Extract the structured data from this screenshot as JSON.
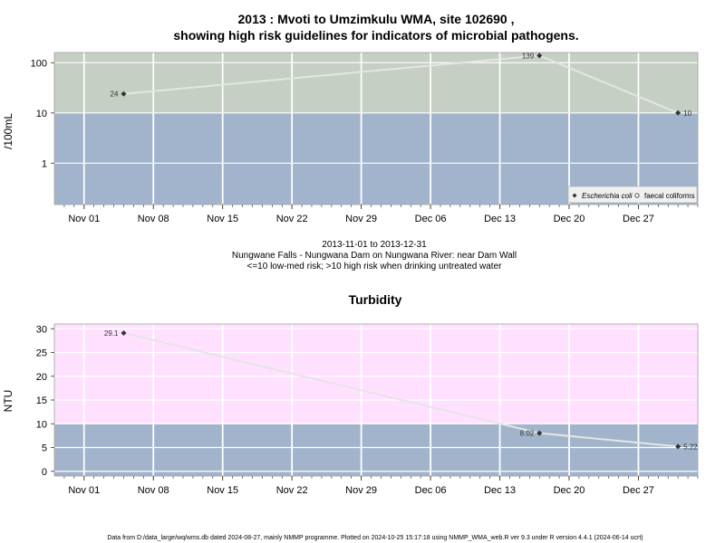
{
  "colors": {
    "high_risk_ecoli": "#c5cfc3",
    "low_risk": "#a2b4cc",
    "high_risk_turbidity": "#ffe1ff",
    "line": "#e5e5e5",
    "point": "#333333",
    "grid": "#ffffff"
  },
  "header": {
    "title_line1": "2013 : Mvoti to Umzimkulu WMA, site 102690 ,",
    "title_line2": "showing high risk guidelines for indicators of microbial pathogens."
  },
  "subtitle": {
    "date_range": "2013-11-01 to 2013-12-31",
    "site_name": "Nungwane Falls - Nungwana Dam on Nungwana River: near Dam Wall",
    "risk_note": "<=10 low-med risk; >10 high risk when drinking untreated water"
  },
  "footer": "Data from D:/data_large/wq/wms.db dated 2024-08-27, mainly NMMP programme. Plotted on 2024-10-25 15:17:18 using NMMP_WMA_web.R ver 9.3 under R version 4.4.1 (2024-06-14 ucrt)",
  "x_ticks": [
    "Nov 01",
    "Nov 08",
    "Nov 15",
    "Nov 22",
    "Nov 29",
    "Dec 06",
    "Dec 13",
    "Dec 20",
    "Dec 27"
  ],
  "chart_data": [
    {
      "type": "line",
      "title": "",
      "ylabel": "/100mL",
      "yscale": "log",
      "ylim": [
        0.15,
        160
      ],
      "xlim": [
        "2013-10-29",
        "2014-01-02"
      ],
      "y_ticks": [
        1,
        10,
        100
      ],
      "y_tick_labels": [
        "1",
        "10",
        "100"
      ],
      "threshold": 10,
      "grid": true,
      "legend_position": "bottom-right",
      "legend": [
        "Escherichia coli",
        "faecal coliforms"
      ],
      "series": [
        {
          "name": "Escherichia coli",
          "points": [
            {
              "date": "2013-11-05",
              "value": 24,
              "label": "24",
              "label_side": "left"
            },
            {
              "date": "2013-12-17",
              "value": 139,
              "label": "139",
              "label_side": "left"
            },
            {
              "date": "2013-12-31",
              "value": 10,
              "label": "10",
              "label_side": "right"
            }
          ]
        }
      ]
    },
    {
      "type": "line",
      "title": "Turbidity",
      "ylabel": "NTU",
      "yscale": "linear",
      "ylim": [
        -1,
        31
      ],
      "xlim": [
        "2013-10-29",
        "2014-01-02"
      ],
      "y_ticks": [
        0,
        5,
        10,
        15,
        20,
        25,
        30
      ],
      "y_tick_labels": [
        "0",
        "5",
        "10",
        "15",
        "20",
        "25",
        "30"
      ],
      "threshold": 10,
      "grid": true,
      "series": [
        {
          "name": "",
          "points": [
            {
              "date": "2013-11-05",
              "value": 29.1,
              "label": "29.1",
              "label_side": "left"
            },
            {
              "date": "2013-12-17",
              "value": 8.02,
              "label": "8.02",
              "label_side": "left"
            },
            {
              "date": "2013-12-31",
              "value": 5.22,
              "label": "5.22",
              "label_side": "right"
            }
          ]
        }
      ]
    }
  ]
}
